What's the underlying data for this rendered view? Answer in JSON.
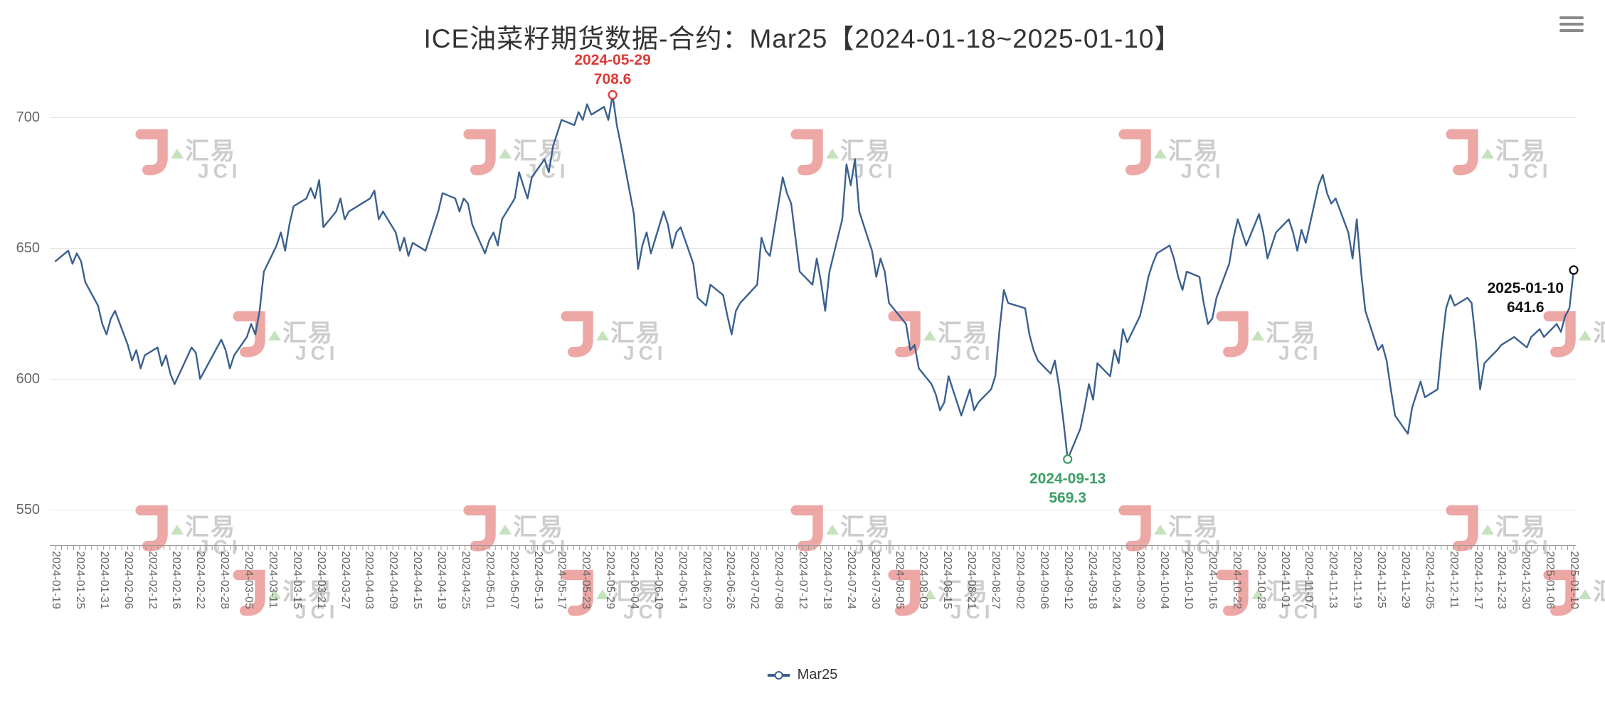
{
  "header": {
    "title": "ICE油菜籽期货数据-合约：Mar25【2024-01-18~2025-01-10】"
  },
  "icons": {
    "menu": "hamburger"
  },
  "legend": {
    "items": [
      {
        "label": "Mar25",
        "color": "#3a608f"
      }
    ]
  },
  "watermark": {
    "brand_cn": "汇易",
    "brand_en": "JCI",
    "red": "#e0605c",
    "gray": "#a6a6a6",
    "green": "#94cc85"
  },
  "chart_data": {
    "type": "line",
    "title": "ICE油菜籽期货数据-合约：Mar25【2024-01-18~2025-01-10】",
    "contract": "Mar25",
    "date_range": [
      "2024-01-18",
      "2025-01-10"
    ],
    "legend_position": "bottom",
    "grid": true,
    "line_color": "#3a608f",
    "xlabel": "",
    "ylabel": "",
    "ylim": [
      536,
      712
    ],
    "y_ticks": [
      550,
      600,
      650,
      700
    ],
    "x_axis_start": "2024-01-19",
    "x_axis_end": "2025-01-10",
    "x_tick_labels": [
      "2024-01-19",
      "2024-01-25",
      "2024-01-31",
      "2024-02-06",
      "2024-02-12",
      "2024-02-16",
      "2024-02-22",
      "2024-02-28",
      "2024-03-05",
      "2024-03-11",
      "2024-03-15",
      "2024-03-21",
      "2024-03-27",
      "2024-04-03",
      "2024-04-09",
      "2024-04-15",
      "2024-04-19",
      "2024-04-25",
      "2024-05-01",
      "2024-05-07",
      "2024-05-13",
      "2024-05-17",
      "2024-05-23",
      "2024-05-29",
      "2024-06-04",
      "2024-06-10",
      "2024-06-14",
      "2024-06-20",
      "2024-06-26",
      "2024-07-02",
      "2024-07-08",
      "2024-07-12",
      "2024-07-18",
      "2024-07-24",
      "2024-07-30",
      "2024-08-05",
      "2024-08-09",
      "2024-08-15",
      "2024-08-21",
      "2024-08-27",
      "2024-09-02",
      "2024-09-06",
      "2024-09-12",
      "2024-09-18",
      "2024-09-24",
      "2024-09-30",
      "2024-10-04",
      "2024-10-10",
      "2024-10-16",
      "2024-10-22",
      "2024-10-28",
      "2024-11-01",
      "2024-11-07",
      "2024-11-13",
      "2024-11-19",
      "2024-11-25",
      "2024-11-29",
      "2024-12-05",
      "2024-12-11",
      "2024-12-17",
      "2024-12-23",
      "2024-12-30",
      "2025-01-06",
      "2025-01-10"
    ],
    "annotations": {
      "max": {
        "date": "2024-05-29",
        "value": 708.6,
        "color": "#dd3a36"
      },
      "min": {
        "date": "2024-09-13",
        "value": 569.3,
        "color": "#3a9e63"
      },
      "last": {
        "date": "2025-01-10",
        "value": 641.6,
        "color": "#111111"
      }
    },
    "series": [
      {
        "name": "Mar25",
        "color": "#3a608f",
        "points": [
          [
            "2024-01-19",
            645
          ],
          [
            "2024-01-22",
            649
          ],
          [
            "2024-01-23",
            644
          ],
          [
            "2024-01-24",
            648
          ],
          [
            "2024-01-25",
            645
          ],
          [
            "2024-01-26",
            637
          ],
          [
            "2024-01-29",
            628
          ],
          [
            "2024-01-30",
            621
          ],
          [
            "2024-01-31",
            617
          ],
          [
            "2024-02-01",
            623
          ],
          [
            "2024-02-02",
            626
          ],
          [
            "2024-02-05",
            613
          ],
          [
            "2024-02-06",
            607
          ],
          [
            "2024-02-07",
            611
          ],
          [
            "2024-02-08",
            604
          ],
          [
            "2024-02-09",
            609
          ],
          [
            "2024-02-12",
            612
          ],
          [
            "2024-02-13",
            605
          ],
          [
            "2024-02-14",
            609
          ],
          [
            "2024-02-15",
            602
          ],
          [
            "2024-02-16",
            598
          ],
          [
            "2024-02-20",
            612
          ],
          [
            "2024-02-21",
            610
          ],
          [
            "2024-02-22",
            600
          ],
          [
            "2024-02-23",
            603
          ],
          [
            "2024-02-26",
            612
          ],
          [
            "2024-02-27",
            615
          ],
          [
            "2024-02-28",
            611
          ],
          [
            "2024-02-29",
            604
          ],
          [
            "2024-03-01",
            609
          ],
          [
            "2024-03-04",
            616
          ],
          [
            "2024-03-05",
            621
          ],
          [
            "2024-03-06",
            617
          ],
          [
            "2024-03-07",
            626
          ],
          [
            "2024-03-08",
            641
          ],
          [
            "2024-03-11",
            651
          ],
          [
            "2024-03-12",
            656
          ],
          [
            "2024-03-13",
            649
          ],
          [
            "2024-03-14",
            659
          ],
          [
            "2024-03-15",
            666
          ],
          [
            "2024-03-18",
            669
          ],
          [
            "2024-03-19",
            673
          ],
          [
            "2024-03-20",
            669
          ],
          [
            "2024-03-21",
            676
          ],
          [
            "2024-03-22",
            658
          ],
          [
            "2024-03-25",
            664
          ],
          [
            "2024-03-26",
            669
          ],
          [
            "2024-03-27",
            661
          ],
          [
            "2024-03-28",
            664
          ],
          [
            "2024-04-02",
            669
          ],
          [
            "2024-04-03",
            672
          ],
          [
            "2024-04-04",
            661
          ],
          [
            "2024-04-05",
            664
          ],
          [
            "2024-04-08",
            656
          ],
          [
            "2024-04-09",
            649
          ],
          [
            "2024-04-10",
            654
          ],
          [
            "2024-04-11",
            647
          ],
          [
            "2024-04-12",
            652
          ],
          [
            "2024-04-15",
            649
          ],
          [
            "2024-04-16",
            654
          ],
          [
            "2024-04-17",
            659
          ],
          [
            "2024-04-18",
            664
          ],
          [
            "2024-04-19",
            671
          ],
          [
            "2024-04-22",
            669
          ],
          [
            "2024-04-23",
            664
          ],
          [
            "2024-04-24",
            669
          ],
          [
            "2024-04-25",
            667
          ],
          [
            "2024-04-26",
            659
          ],
          [
            "2024-04-29",
            648
          ],
          [
            "2024-04-30",
            653
          ],
          [
            "2024-05-01",
            656
          ],
          [
            "2024-05-02",
            651
          ],
          [
            "2024-05-03",
            661
          ],
          [
            "2024-05-06",
            669
          ],
          [
            "2024-05-07",
            679
          ],
          [
            "2024-05-08",
            674
          ],
          [
            "2024-05-09",
            669
          ],
          [
            "2024-05-10",
            677
          ],
          [
            "2024-05-13",
            684
          ],
          [
            "2024-05-14",
            679
          ],
          [
            "2024-05-15",
            689
          ],
          [
            "2024-05-16",
            694
          ],
          [
            "2024-05-17",
            699
          ],
          [
            "2024-05-20",
            697
          ],
          [
            "2024-05-21",
            702
          ],
          [
            "2024-05-22",
            699
          ],
          [
            "2024-05-23",
            705
          ],
          [
            "2024-05-24",
            701
          ],
          [
            "2024-05-27",
            704
          ],
          [
            "2024-05-28",
            699
          ],
          [
            "2024-05-29",
            708.6
          ],
          [
            "2024-05-30",
            697
          ],
          [
            "2024-05-31",
            689
          ],
          [
            "2024-06-03",
            663
          ],
          [
            "2024-06-04",
            642
          ],
          [
            "2024-06-05",
            651
          ],
          [
            "2024-06-06",
            656
          ],
          [
            "2024-06-07",
            648
          ],
          [
            "2024-06-10",
            664
          ],
          [
            "2024-06-11",
            659
          ],
          [
            "2024-06-12",
            650
          ],
          [
            "2024-06-13",
            656
          ],
          [
            "2024-06-14",
            658
          ],
          [
            "2024-06-17",
            644
          ],
          [
            "2024-06-18",
            631
          ],
          [
            "2024-06-20",
            628
          ],
          [
            "2024-06-21",
            636
          ],
          [
            "2024-06-24",
            632
          ],
          [
            "2024-06-25",
            624
          ],
          [
            "2024-06-26",
            617
          ],
          [
            "2024-06-27",
            626
          ],
          [
            "2024-06-28",
            629
          ],
          [
            "2024-07-02",
            636
          ],
          [
            "2024-07-03",
            654
          ],
          [
            "2024-07-04",
            649
          ],
          [
            "2024-07-05",
            647
          ],
          [
            "2024-07-08",
            677
          ],
          [
            "2024-07-09",
            671
          ],
          [
            "2024-07-10",
            667
          ],
          [
            "2024-07-11",
            654
          ],
          [
            "2024-07-12",
            641
          ],
          [
            "2024-07-15",
            636
          ],
          [
            "2024-07-16",
            646
          ],
          [
            "2024-07-17",
            637
          ],
          [
            "2024-07-18",
            626
          ],
          [
            "2024-07-19",
            641
          ],
          [
            "2024-07-22",
            661
          ],
          [
            "2024-07-23",
            682
          ],
          [
            "2024-07-24",
            674
          ],
          [
            "2024-07-25",
            684
          ],
          [
            "2024-07-26",
            664
          ],
          [
            "2024-07-29",
            649
          ],
          [
            "2024-07-30",
            639
          ],
          [
            "2024-07-31",
            646
          ],
          [
            "2024-08-01",
            641
          ],
          [
            "2024-08-02",
            629
          ],
          [
            "2024-08-06",
            621
          ],
          [
            "2024-08-07",
            611
          ],
          [
            "2024-08-08",
            613
          ],
          [
            "2024-08-09",
            604
          ],
          [
            "2024-08-12",
            598
          ],
          [
            "2024-08-13",
            594
          ],
          [
            "2024-08-14",
            588
          ],
          [
            "2024-08-15",
            591
          ],
          [
            "2024-08-16",
            601
          ],
          [
            "2024-08-19",
            586
          ],
          [
            "2024-08-20",
            591
          ],
          [
            "2024-08-21",
            596
          ],
          [
            "2024-08-22",
            588
          ],
          [
            "2024-08-23",
            591
          ],
          [
            "2024-08-26",
            596
          ],
          [
            "2024-08-27",
            601
          ],
          [
            "2024-08-28",
            619
          ],
          [
            "2024-08-29",
            634
          ],
          [
            "2024-08-30",
            629
          ],
          [
            "2024-09-03",
            627
          ],
          [
            "2024-09-04",
            617
          ],
          [
            "2024-09-05",
            611
          ],
          [
            "2024-09-06",
            607
          ],
          [
            "2024-09-09",
            602
          ],
          [
            "2024-09-10",
            607
          ],
          [
            "2024-09-11",
            597
          ],
          [
            "2024-09-12",
            584
          ],
          [
            "2024-09-13",
            569.3
          ],
          [
            "2024-09-16",
            581
          ],
          [
            "2024-09-17",
            589
          ],
          [
            "2024-09-18",
            598
          ],
          [
            "2024-09-19",
            592
          ],
          [
            "2024-09-20",
            606
          ],
          [
            "2024-09-23",
            601
          ],
          [
            "2024-09-24",
            611
          ],
          [
            "2024-09-25",
            606
          ],
          [
            "2024-09-26",
            619
          ],
          [
            "2024-09-27",
            614
          ],
          [
            "2024-09-30",
            624
          ],
          [
            "2024-10-01",
            631
          ],
          [
            "2024-10-02",
            639
          ],
          [
            "2024-10-03",
            644
          ],
          [
            "2024-10-04",
            648
          ],
          [
            "2024-10-07",
            651
          ],
          [
            "2024-10-08",
            646
          ],
          [
            "2024-10-09",
            639
          ],
          [
            "2024-10-10",
            634
          ],
          [
            "2024-10-11",
            641
          ],
          [
            "2024-10-14",
            639
          ],
          [
            "2024-10-15",
            629
          ],
          [
            "2024-10-16",
            621
          ],
          [
            "2024-10-17",
            623
          ],
          [
            "2024-10-18",
            631
          ],
          [
            "2024-10-21",
            644
          ],
          [
            "2024-10-22",
            654
          ],
          [
            "2024-10-23",
            661
          ],
          [
            "2024-10-24",
            656
          ],
          [
            "2024-10-25",
            651
          ],
          [
            "2024-10-28",
            663
          ],
          [
            "2024-10-29",
            656
          ],
          [
            "2024-10-30",
            646
          ],
          [
            "2024-10-31",
            651
          ],
          [
            "2024-11-01",
            656
          ],
          [
            "2024-11-04",
            661
          ],
          [
            "2024-11-05",
            656
          ],
          [
            "2024-11-06",
            649
          ],
          [
            "2024-11-07",
            657
          ],
          [
            "2024-11-08",
            652
          ],
          [
            "2024-11-11",
            674
          ],
          [
            "2024-11-12",
            678
          ],
          [
            "2024-11-13",
            671
          ],
          [
            "2024-11-14",
            667
          ],
          [
            "2024-11-15",
            669
          ],
          [
            "2024-11-18",
            656
          ],
          [
            "2024-11-19",
            646
          ],
          [
            "2024-11-20",
            661
          ],
          [
            "2024-11-21",
            641
          ],
          [
            "2024-11-22",
            626
          ],
          [
            "2024-11-25",
            611
          ],
          [
            "2024-11-26",
            613
          ],
          [
            "2024-11-27",
            607
          ],
          [
            "2024-11-28",
            596
          ],
          [
            "2024-11-29",
            586
          ],
          [
            "2024-12-02",
            579
          ],
          [
            "2024-12-03",
            589
          ],
          [
            "2024-12-04",
            594
          ],
          [
            "2024-12-05",
            599
          ],
          [
            "2024-12-06",
            593
          ],
          [
            "2024-12-09",
            596
          ],
          [
            "2024-12-10",
            613
          ],
          [
            "2024-12-11",
            627
          ],
          [
            "2024-12-12",
            632
          ],
          [
            "2024-12-13",
            628
          ],
          [
            "2024-12-16",
            631
          ],
          [
            "2024-12-17",
            629
          ],
          [
            "2024-12-18",
            614
          ],
          [
            "2024-12-19",
            596
          ],
          [
            "2024-12-20",
            606
          ],
          [
            "2024-12-23",
            611
          ],
          [
            "2024-12-24",
            613
          ],
          [
            "2024-12-27",
            616
          ],
          [
            "2024-12-30",
            612
          ],
          [
            "2024-12-31",
            616
          ],
          [
            "2025-01-02",
            619
          ],
          [
            "2025-01-03",
            616
          ],
          [
            "2025-01-06",
            621
          ],
          [
            "2025-01-07",
            618
          ],
          [
            "2025-01-08",
            624
          ],
          [
            "2025-01-09",
            627
          ],
          [
            "2025-01-10",
            641.6
          ]
        ]
      }
    ]
  }
}
